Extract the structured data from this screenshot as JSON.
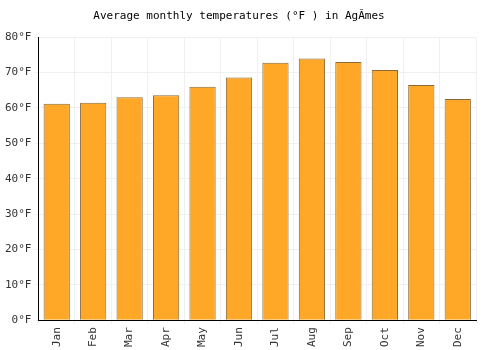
{
  "chart_data": {
    "type": "bar",
    "title": "Average monthly temperatures (°F ) in AgĂmes",
    "categories": [
      "Jan",
      "Feb",
      "Mar",
      "Apr",
      "May",
      "Jun",
      "Jul",
      "Aug",
      "Sep",
      "Oct",
      "Nov",
      "Dec"
    ],
    "values": [
      61.2,
      61.5,
      63.0,
      63.6,
      66.0,
      68.6,
      72.8,
      74.0,
      73.0,
      70.7,
      66.5,
      62.5
    ],
    "color": "#ffa726",
    "ylim": [
      0,
      80
    ],
    "yticks": [
      {
        "value": 0,
        "label": "0°F"
      },
      {
        "value": 10,
        "label": "10°F"
      },
      {
        "value": 20,
        "label": "20°F"
      },
      {
        "value": 30,
        "label": "30°F"
      },
      {
        "value": 40,
        "label": "40°F"
      },
      {
        "value": 50,
        "label": "50°F"
      },
      {
        "value": 60,
        "label": "60°F"
      },
      {
        "value": 70,
        "label": "70°F"
      },
      {
        "value": 80,
        "label": "80°F"
      }
    ],
    "grid": true
  }
}
